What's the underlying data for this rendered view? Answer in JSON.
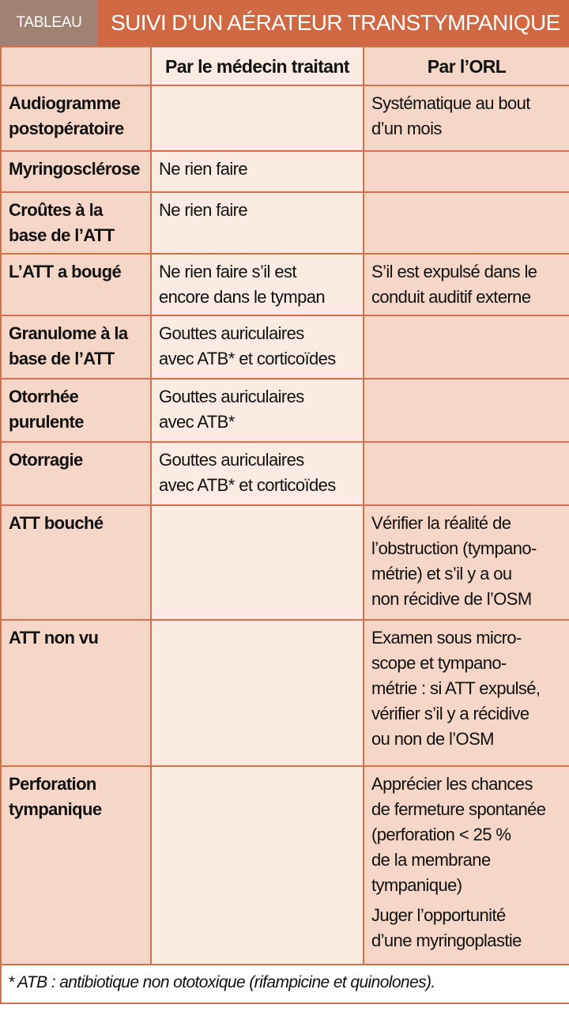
{
  "header": {
    "tag": "TABLEAU",
    "title": "SUIVI D’UN AÉRATEUR TRANSTYMPANIQUE"
  },
  "columns": [
    "",
    "Par le médecin traitant",
    "Par l’ORL"
  ],
  "rows": [
    {
      "label": [
        "Audiogramme",
        "postopératoire"
      ],
      "medecin": [],
      "orl": [
        [
          "Systématique au bout",
          "d’un mois"
        ]
      ]
    },
    {
      "label": [
        "Myringosclérose"
      ],
      "medecin": [
        "Ne rien faire"
      ],
      "orl": []
    },
    {
      "label": [
        "Croûtes à la",
        "base de l’ATT"
      ],
      "medecin": [
        "Ne rien faire"
      ],
      "orl": []
    },
    {
      "label": [
        "L’ATT a bougé"
      ],
      "medecin": [
        "Ne rien faire s’il est",
        "encore dans le tympan"
      ],
      "orl": [
        [
          "S’il est expulsé dans le",
          "conduit auditif externe"
        ]
      ]
    },
    {
      "label": [
        "Granulome à la",
        "base de l’ATT"
      ],
      "medecin": [
        "Gouttes auriculaires",
        "avec ATB* et corticoïdes"
      ],
      "orl": []
    },
    {
      "label": [
        "Otorrhée",
        "purulente"
      ],
      "medecin": [
        "Gouttes auriculaires",
        "avec ATB*"
      ],
      "orl": []
    },
    {
      "label": [
        "Otorragie"
      ],
      "medecin": [
        "Gouttes auriculaires",
        "avec ATB* et corticoïdes"
      ],
      "orl": []
    },
    {
      "label": [
        "ATT bouché"
      ],
      "medecin": [],
      "orl": [
        [
          "Vérifier la réalité de",
          "l’obstruction (tympano-",
          "métrie) et s’il y a ou",
          "non récidive de l’OSM"
        ]
      ]
    },
    {
      "label": [
        "ATT non vu"
      ],
      "medecin": [],
      "orl": [
        [
          "Examen sous micro-",
          "scope et tympano-",
          "métrie : si ATT expulsé,",
          "vérifier s’il y a récidive",
          "ou non de l’OSM"
        ]
      ]
    },
    {
      "label": [
        "Perforation",
        "tympanique"
      ],
      "medecin": [],
      "orl": [
        [
          "Apprécier les chances",
          "de fermeture spontanée",
          "(perforation < 25 %",
          "de la membrane",
          "tympanique)"
        ],
        [
          "Juger l’opportunité",
          "d’une myringoplastie"
        ]
      ]
    }
  ],
  "footnote": "* ATB : antibiotique non ototoxique (rifampicine et quinolones).",
  "colors": {
    "title_bar": "#cf6843",
    "tag": "#a08272",
    "border": "#d3714d",
    "cell_dark": "#f6d6c6",
    "cell_light": "#fbebe3"
  }
}
